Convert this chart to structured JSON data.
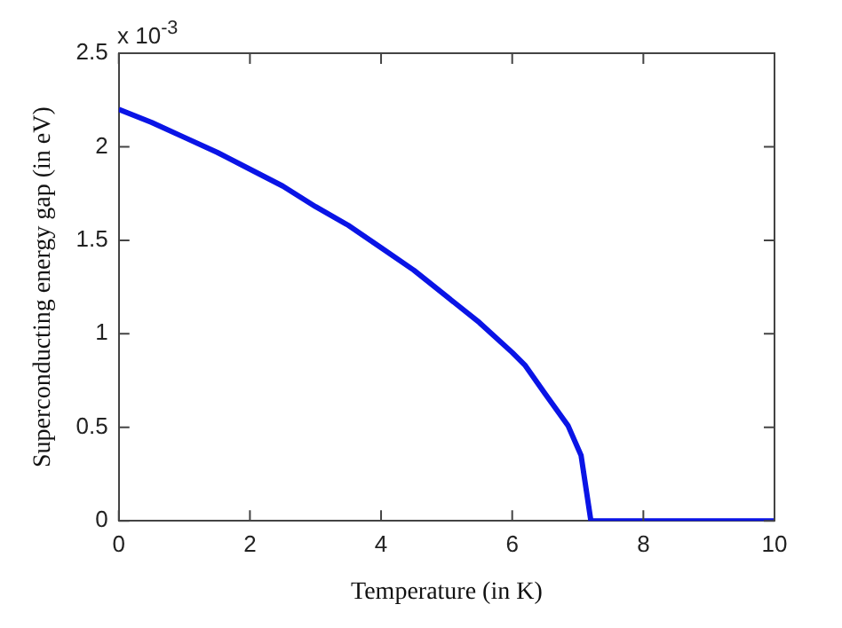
{
  "chart_data": {
    "type": "line",
    "xlabel": "Temperature (in K)",
    "ylabel": "Superconducting energy gap (in eV)",
    "annotations": [
      "x 10$^{-3}$"
    ],
    "x": [
      0,
      0.5,
      1,
      1.5,
      2,
      2.5,
      3,
      3.5,
      4,
      4.5,
      5,
      5.5,
      6,
      6.2,
      6.5,
      6.85,
      7.05,
      7.2,
      8,
      9,
      10
    ],
    "series": [
      {
        "color": "#0a14e6",
        "values": [
          2.2,
          2.13,
          2.05,
          1.97,
          1.88,
          1.79,
          1.68,
          1.58,
          1.46,
          1.34,
          1.2,
          1.06,
          0.9,
          0.83,
          0.68,
          0.51,
          0.35,
          0,
          0,
          0,
          0
        ]
      }
    ],
    "xlim": [
      0,
      10
    ],
    "xticks": [
      0,
      2,
      4,
      6,
      8,
      10
    ],
    "ylim": [
      0,
      2.5
    ],
    "yticks": [
      0,
      0.5,
      1,
      1.5,
      2,
      2.5
    ],
    "grid": false,
    "legend": false,
    "marker": "none",
    "line_style": "solid"
  }
}
